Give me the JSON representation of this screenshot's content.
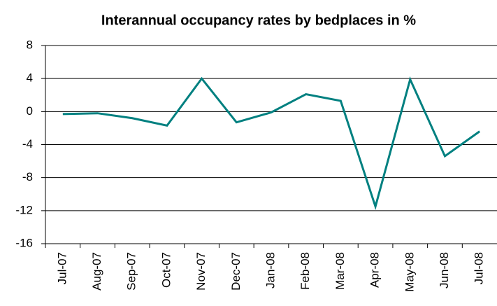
{
  "chart_data": {
    "type": "line",
    "title": "Interannual occupancy rates by bedplaces in %",
    "categories": [
      "Jul-07",
      "Aug-07",
      "Sep-07",
      "Oct-07",
      "Nov-07",
      "Dec-07",
      "Jan-08",
      "Feb-08",
      "Mar-08",
      "Apr-08",
      "May-08",
      "Jun-08",
      "Jul-08"
    ],
    "series": [
      {
        "name": "Interannual occupancy rates",
        "color": "#008080",
        "values": [
          -0.3,
          -0.2,
          -0.8,
          -1.7,
          4.0,
          -1.3,
          -0.1,
          2.1,
          1.3,
          -11.5,
          3.9,
          -5.4,
          -2.4
        ]
      }
    ],
    "ylim": [
      -16,
      8
    ],
    "yticks": [
      -16,
      -12,
      -8,
      -4,
      0,
      4,
      8
    ],
    "grid": true
  }
}
